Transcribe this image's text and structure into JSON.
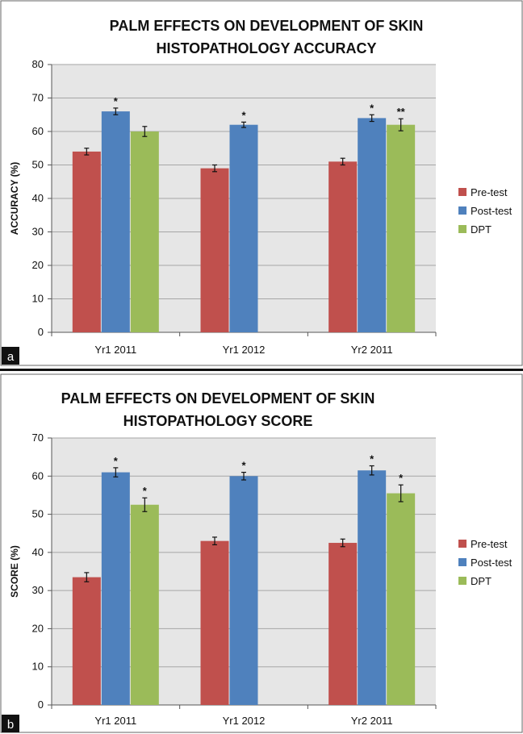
{
  "chart_data": [
    {
      "panel_label": "a",
      "type": "bar",
      "title_lines": [
        "PALM EFFECTS ON DEVELOPMENT OF SKIN",
        "HISTOPATHOLOGY ACCURACY"
      ],
      "ylabel": "ACCURACY (%)",
      "ylim": [
        0,
        80
      ],
      "yticks": [
        0,
        10,
        20,
        30,
        40,
        50,
        60,
        70,
        80
      ],
      "grid": true,
      "legend_position": "right",
      "categories": [
        "Yr1 2011",
        "Yr1 2012",
        "Yr2 2011"
      ],
      "series": [
        {
          "name": "Pre-test",
          "color": "#c0504d",
          "values": [
            54,
            49,
            51
          ],
          "errors": [
            1,
            1,
            1
          ],
          "annotations": [
            "",
            "",
            ""
          ]
        },
        {
          "name": "Post-test",
          "color": "#4f81bd",
          "values": [
            66,
            62,
            64
          ],
          "errors": [
            1,
            0.8,
            1
          ],
          "annotations": [
            "*",
            "*",
            "*"
          ]
        },
        {
          "name": "DPT",
          "color": "#9bbb59",
          "values": [
            60,
            null,
            62
          ],
          "errors": [
            1.5,
            null,
            1.8
          ],
          "annotations": [
            "",
            "",
            "**"
          ]
        }
      ]
    },
    {
      "panel_label": "b",
      "type": "bar",
      "title_lines": [
        "PALM EFFECTS ON DEVELOPMENT OF SKIN",
        "HISTOPATHOLOGY SCORE"
      ],
      "ylabel": "SCORE (%)",
      "ylim": [
        0,
        70
      ],
      "yticks": [
        0,
        10,
        20,
        30,
        40,
        50,
        60,
        70
      ],
      "grid": true,
      "legend_position": "right",
      "categories": [
        "Yr1 2011",
        "Yr1 2012",
        "Yr2 2011"
      ],
      "series": [
        {
          "name": "Pre-test",
          "color": "#c0504d",
          "values": [
            33.5,
            43,
            42.5
          ],
          "errors": [
            1.2,
            1,
            1
          ],
          "annotations": [
            "",
            "",
            ""
          ]
        },
        {
          "name": "Post-test",
          "color": "#4f81bd",
          "values": [
            61,
            60,
            61.5
          ],
          "errors": [
            1.2,
            1,
            1.2
          ],
          "annotations": [
            "*",
            "*",
            "*"
          ]
        },
        {
          "name": "DPT",
          "color": "#9bbb59",
          "values": [
            52.5,
            null,
            55.5
          ],
          "errors": [
            1.8,
            null,
            2.2
          ],
          "annotations": [
            "*",
            "",
            "*"
          ]
        }
      ]
    }
  ]
}
